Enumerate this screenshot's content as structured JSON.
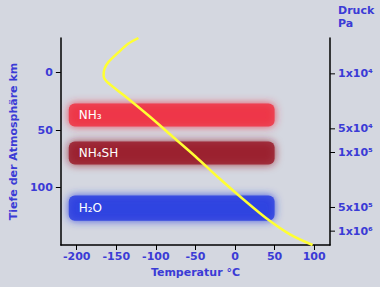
{
  "chart_data": {
    "type": "line",
    "x_label": "Temperatur °C",
    "y_label": "Tiefe der Atmosphäre km",
    "y2_label": "Druck\nPa",
    "x": [
      -122,
      -135,
      -148,
      -160,
      -165,
      -166,
      -162,
      -140,
      -110,
      -80,
      -50,
      -20,
      10,
      40,
      70,
      98
    ],
    "values": [
      -30,
      -25,
      -17,
      -9,
      -3,
      3,
      8,
      20,
      37,
      55,
      73,
      92,
      110,
      127,
      141,
      150
    ],
    "color": "#ffff33",
    "xlim": [
      -220,
      120
    ],
    "xticks": [
      -200,
      -150,
      -100,
      -50,
      0,
      50,
      100
    ],
    "ylim": [
      150,
      -30
    ],
    "yticks": [
      0,
      50,
      100
    ],
    "y2lim": [
      1500000,
      3500
    ],
    "y2ticks": [
      {
        "value": 10000,
        "label": "1x10⁴"
      },
      {
        "value": 50000,
        "label": "5x10⁴"
      },
      {
        "value": 100000,
        "label": "1x10⁵"
      },
      {
        "value": 500000,
        "label": "5x10⁵"
      },
      {
        "value": 1000000,
        "label": "1x10⁶"
      }
    ],
    "log": "y2",
    "grid": false,
    "cloud_xrange": [
      -210,
      50
    ],
    "cloud_layers": [
      {
        "label": "NH₃",
        "depth": [
          27,
          47
        ],
        "color": "#ee3344"
      },
      {
        "label": "NH₄SH",
        "depth": [
          60,
          80
        ],
        "color": "#9a1c2c"
      },
      {
        "label": "H₂O",
        "depth": [
          107,
          129
        ],
        "color": "#2b3fe0"
      }
    ]
  }
}
